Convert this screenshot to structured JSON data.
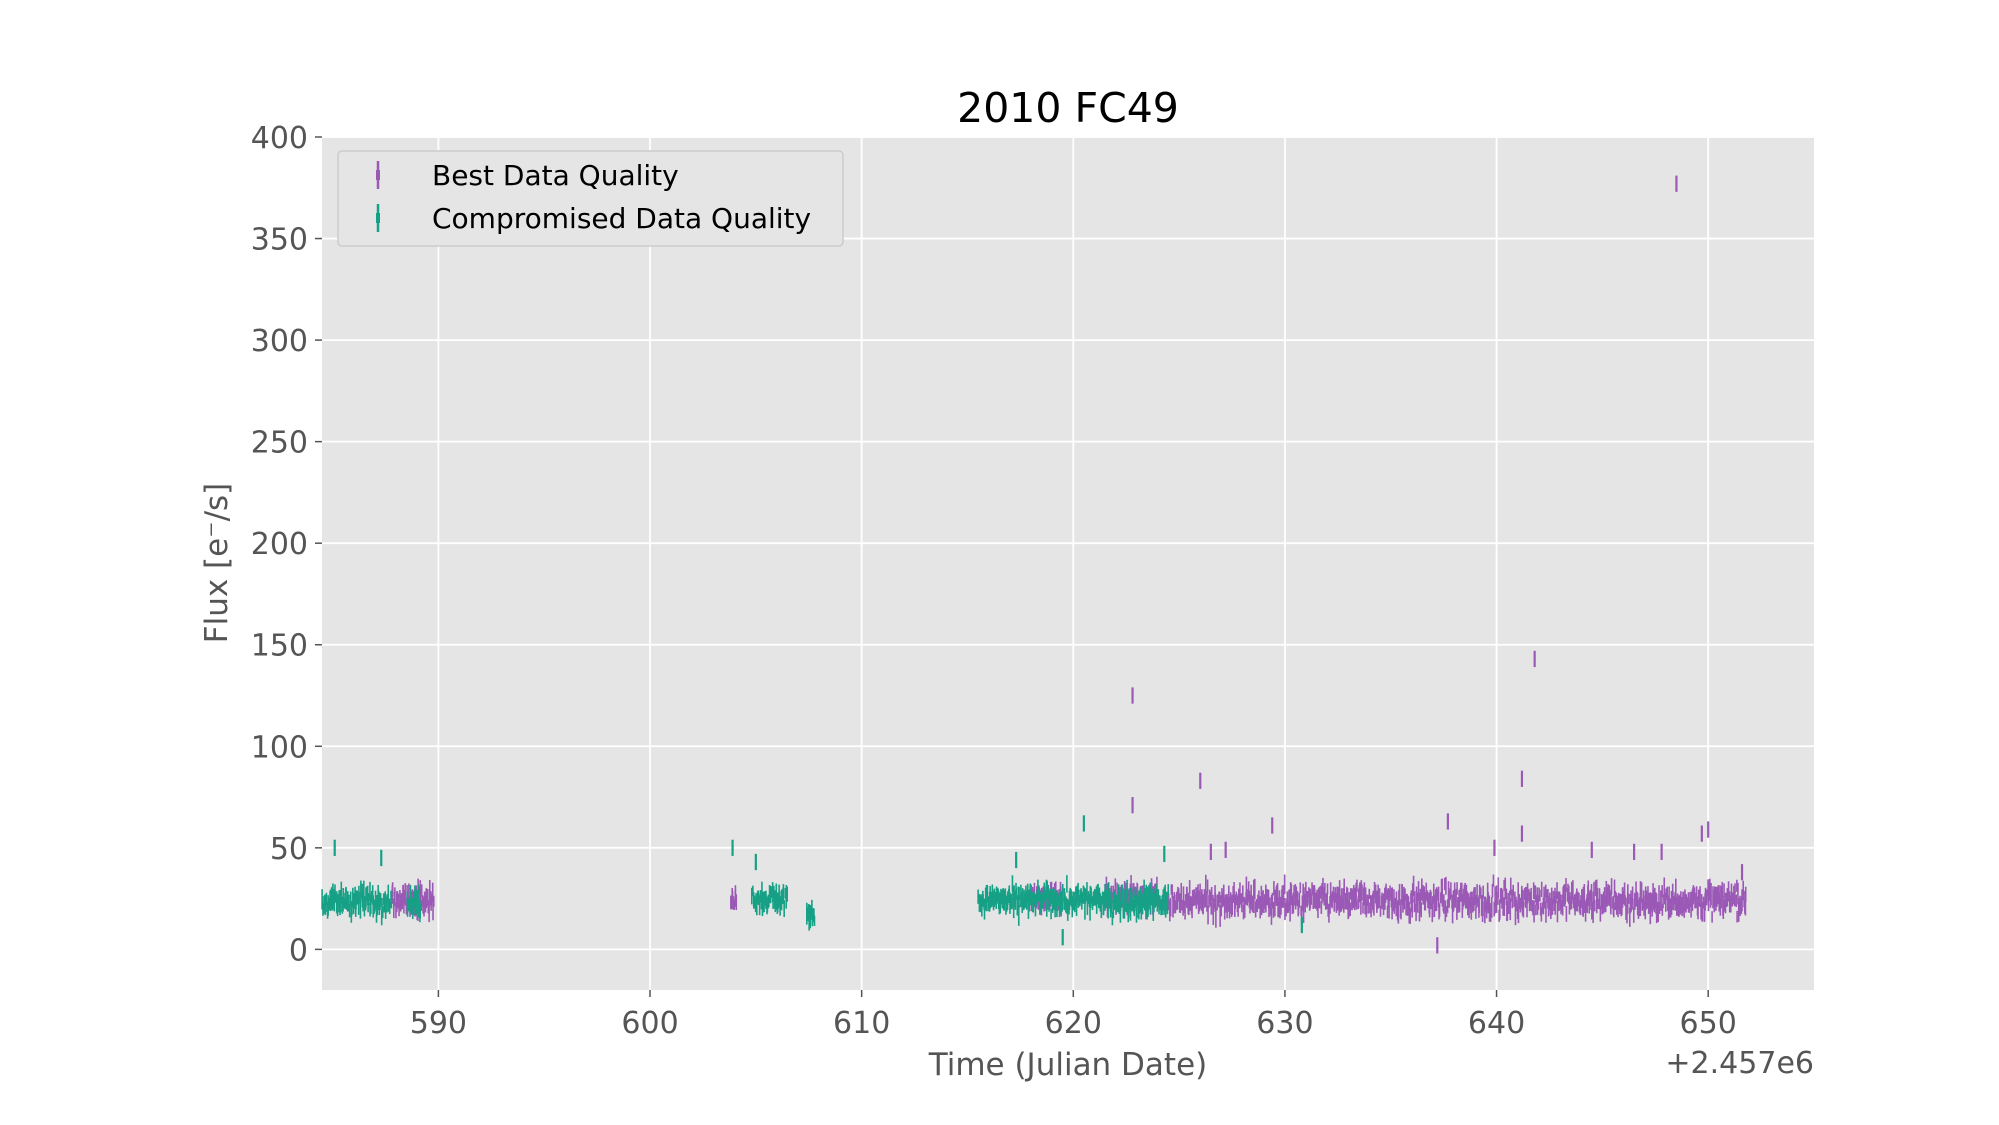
{
  "chart_data": {
    "type": "scatter",
    "title": "2010 FC49",
    "xlabel": "Time (Julian Date)",
    "ylabel": "Flux [e⁻/s]",
    "x_offset_label": "+2.457e6",
    "xlim": [
      584.5,
      655
    ],
    "ylim": [
      -20,
      400
    ],
    "xticks": [
      590,
      600,
      610,
      620,
      630,
      640,
      650
    ],
    "yticks": [
      0,
      50,
      100,
      150,
      200,
      250,
      300,
      350,
      400
    ],
    "grid": true,
    "legend_position": "upper-left",
    "series": [
      {
        "name": "Best Data Quality",
        "color": "#9b59b6",
        "segments": [
          {
            "x_start": 587.8,
            "x_end": 589.8,
            "median": 24,
            "spread": 10
          },
          {
            "x_start": 603.8,
            "x_end": 604.1,
            "median": 25,
            "spread": 9
          },
          {
            "x_start": 618.0,
            "x_end": 619.5,
            "median": 25,
            "spread": 10
          },
          {
            "x_start": 621.5,
            "x_end": 624.0,
            "median": 26,
            "spread": 10
          },
          {
            "x_start": 624.5,
            "x_end": 651.8,
            "median": 24,
            "spread": 12
          }
        ],
        "outliers": [
          {
            "x": 622.8,
            "y": 125
          },
          {
            "x": 622.8,
            "y": 71
          },
          {
            "x": 626.0,
            "y": 83
          },
          {
            "x": 629.4,
            "y": 61
          },
          {
            "x": 637.7,
            "y": 63
          },
          {
            "x": 639.9,
            "y": 50
          },
          {
            "x": 641.2,
            "y": 84
          },
          {
            "x": 641.2,
            "y": 57
          },
          {
            "x": 641.8,
            "y": 143
          },
          {
            "x": 644.5,
            "y": 49
          },
          {
            "x": 646.5,
            "y": 48
          },
          {
            "x": 647.8,
            "y": 48
          },
          {
            "x": 648.5,
            "y": 377
          },
          {
            "x": 649.7,
            "y": 57
          },
          {
            "x": 650.0,
            "y": 59
          },
          {
            "x": 651.6,
            "y": 38
          },
          {
            "x": 637.2,
            "y": 2
          },
          {
            "x": 626.5,
            "y": 48
          },
          {
            "x": 627.2,
            "y": 49
          }
        ]
      },
      {
        "name": "Compromised Data Quality",
        "color": "#16a085",
        "segments": [
          {
            "x_start": 584.5,
            "x_end": 587.8,
            "median": 24,
            "spread": 10
          },
          {
            "x_start": 588.5,
            "x_end": 589.2,
            "median": 23,
            "spread": 9
          },
          {
            "x_start": 604.8,
            "x_end": 606.5,
            "median": 25,
            "spread": 9
          },
          {
            "x_start": 607.4,
            "x_end": 607.8,
            "median": 17,
            "spread": 6
          },
          {
            "x_start": 615.5,
            "x_end": 624.5,
            "median": 24,
            "spread": 10
          }
        ],
        "outliers": [
          {
            "x": 585.1,
            "y": 50
          },
          {
            "x": 587.3,
            "y": 45
          },
          {
            "x": 603.9,
            "y": 50
          },
          {
            "x": 605.0,
            "y": 43
          },
          {
            "x": 617.3,
            "y": 44
          },
          {
            "x": 620.5,
            "y": 62
          },
          {
            "x": 624.3,
            "y": 47
          },
          {
            "x": 630.8,
            "y": 12
          },
          {
            "x": 619.5,
            "y": 6
          }
        ]
      }
    ]
  }
}
